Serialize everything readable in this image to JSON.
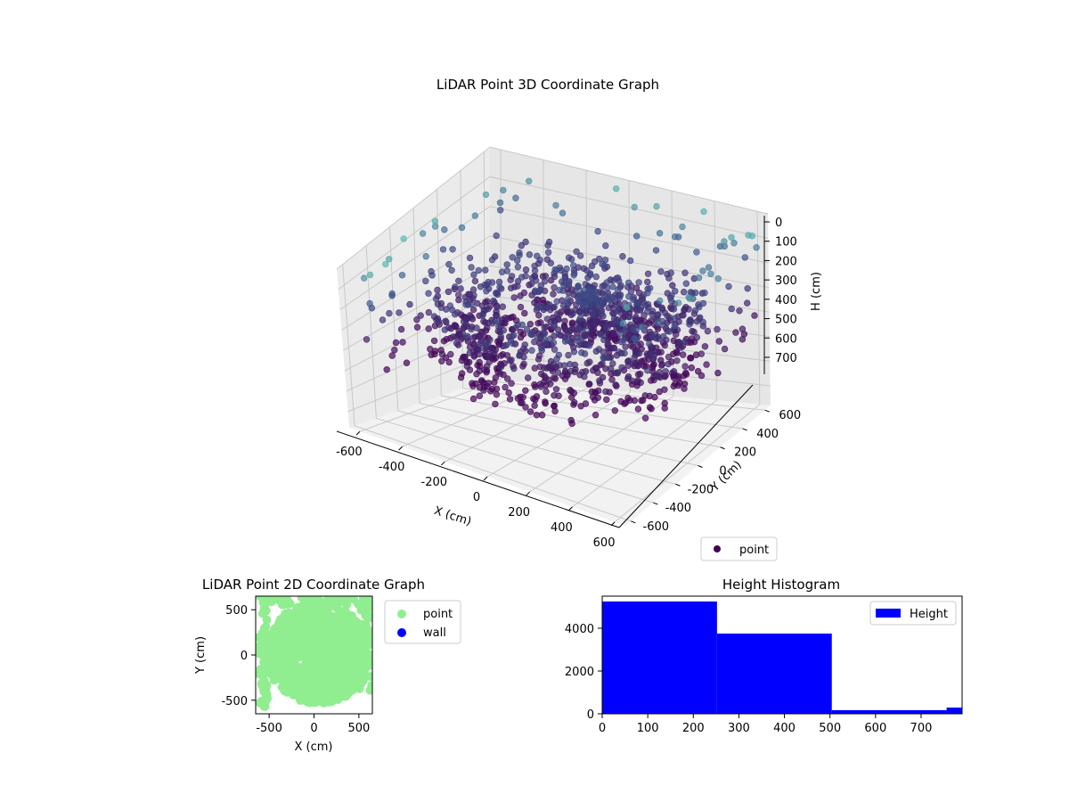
{
  "chart_data": [
    {
      "type": "scatter",
      "projection": "3d",
      "title": "LiDAR Point 3D Coordinate Graph",
      "xlabel": "X (cm)",
      "ylabel": "Y (cm)",
      "zlabel": "H (cm)",
      "xlim": [
        -650,
        650
      ],
      "ylim": [
        -650,
        650
      ],
      "zlim": [
        780,
        0
      ],
      "z_axis_inverted": true,
      "xticks": [
        -600,
        -400,
        -200,
        0,
        200,
        400,
        600
      ],
      "yticks": [
        -600,
        -400,
        -200,
        0,
        200,
        400,
        600
      ],
      "zticks": [
        0,
        100,
        200,
        300,
        400,
        500,
        600,
        700
      ],
      "grid": true,
      "legend": {
        "position": "lower-right",
        "entries": [
          "point"
        ]
      },
      "series": [
        {
          "name": "point",
          "color_by_height": true,
          "colormap_start": "#440154",
          "colormap_mid": "#3b528b",
          "colormap_end": "#5ec9b5",
          "description_of_shape": "dense ring of points around origin, radius ~400-650 cm, heights 200-550 cm, plus sparse points near ceiling"
        }
      ]
    },
    {
      "type": "scatter",
      "title": "LiDAR Point 2D Coordinate Graph",
      "xlabel": "X (cm)",
      "ylabel": "Y (cm)",
      "xlim": [
        -650,
        650
      ],
      "ylim": [
        -650,
        650
      ],
      "xticks": [
        -500,
        0,
        500
      ],
      "yticks": [
        -500,
        0,
        500
      ],
      "legend": {
        "position": "outside-right",
        "entries": [
          "point",
          "wall"
        ]
      },
      "series": [
        {
          "name": "point",
          "color": "#90ee90"
        },
        {
          "name": "wall",
          "color": "#0000ff",
          "values": []
        }
      ]
    },
    {
      "type": "bar",
      "subtype": "histogram",
      "title": "Height Histogram",
      "xlim": [
        0,
        790
      ],
      "ylim": [
        0,
        5500
      ],
      "xticks": [
        0,
        100,
        200,
        300,
        400,
        500,
        600,
        700
      ],
      "yticks": [
        0,
        2000,
        4000
      ],
      "legend": {
        "position": "top-right",
        "entries": [
          "Height"
        ]
      },
      "series": [
        {
          "name": "Height",
          "color": "#0000ff",
          "bins": [
            {
              "start": 0,
              "end": 252,
              "count": 5250
            },
            {
              "start": 252,
              "end": 504,
              "count": 3750
            },
            {
              "start": 504,
              "end": 756,
              "count": 170
            },
            {
              "start": 756,
              "end": 790,
              "count": 290
            }
          ]
        }
      ]
    }
  ]
}
